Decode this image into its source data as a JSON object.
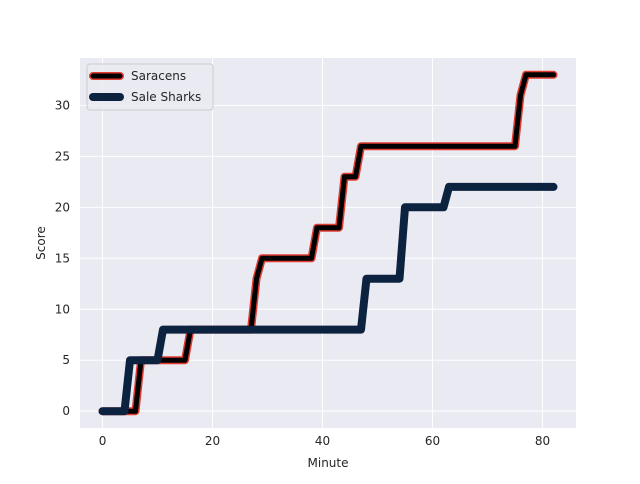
{
  "chart_data": {
    "type": "line",
    "xlabel": "Minute",
    "ylabel": "Score",
    "xlim": [
      -4.1,
      86.1
    ],
    "ylim": [
      -1.65,
      34.65
    ],
    "xticks": [
      0,
      20,
      40,
      60,
      80
    ],
    "yticks": [
      0,
      5,
      10,
      15,
      20,
      25,
      30
    ],
    "grid": true,
    "legend_position": "top-left",
    "series": [
      {
        "name": "Saracens",
        "color": "#000000",
        "edge_color": "#e03c31",
        "x": [
          0,
          5,
          6,
          7,
          14,
          15,
          16,
          26,
          27,
          28,
          29,
          37,
          38,
          39,
          42,
          43,
          44,
          46,
          47,
          75,
          76,
          77,
          78,
          82
        ],
        "y": [
          0,
          0,
          0,
          5,
          5,
          5,
          8,
          8,
          8,
          13,
          15,
          15,
          15,
          18,
          18,
          18,
          23,
          23,
          26,
          26,
          31,
          33,
          33,
          33
        ]
      },
      {
        "name": "Sale Sharks",
        "color": "#0c2340",
        "edge_color": "#0c2340",
        "x": [
          0,
          4,
          5,
          10,
          11,
          47,
          48,
          54,
          55,
          62,
          63,
          82
        ],
        "y": [
          0,
          0,
          5,
          5,
          8,
          8,
          13,
          13,
          20,
          20,
          22,
          22
        ]
      }
    ],
    "legend": [
      "Saracens",
      "Sale Sharks"
    ]
  }
}
